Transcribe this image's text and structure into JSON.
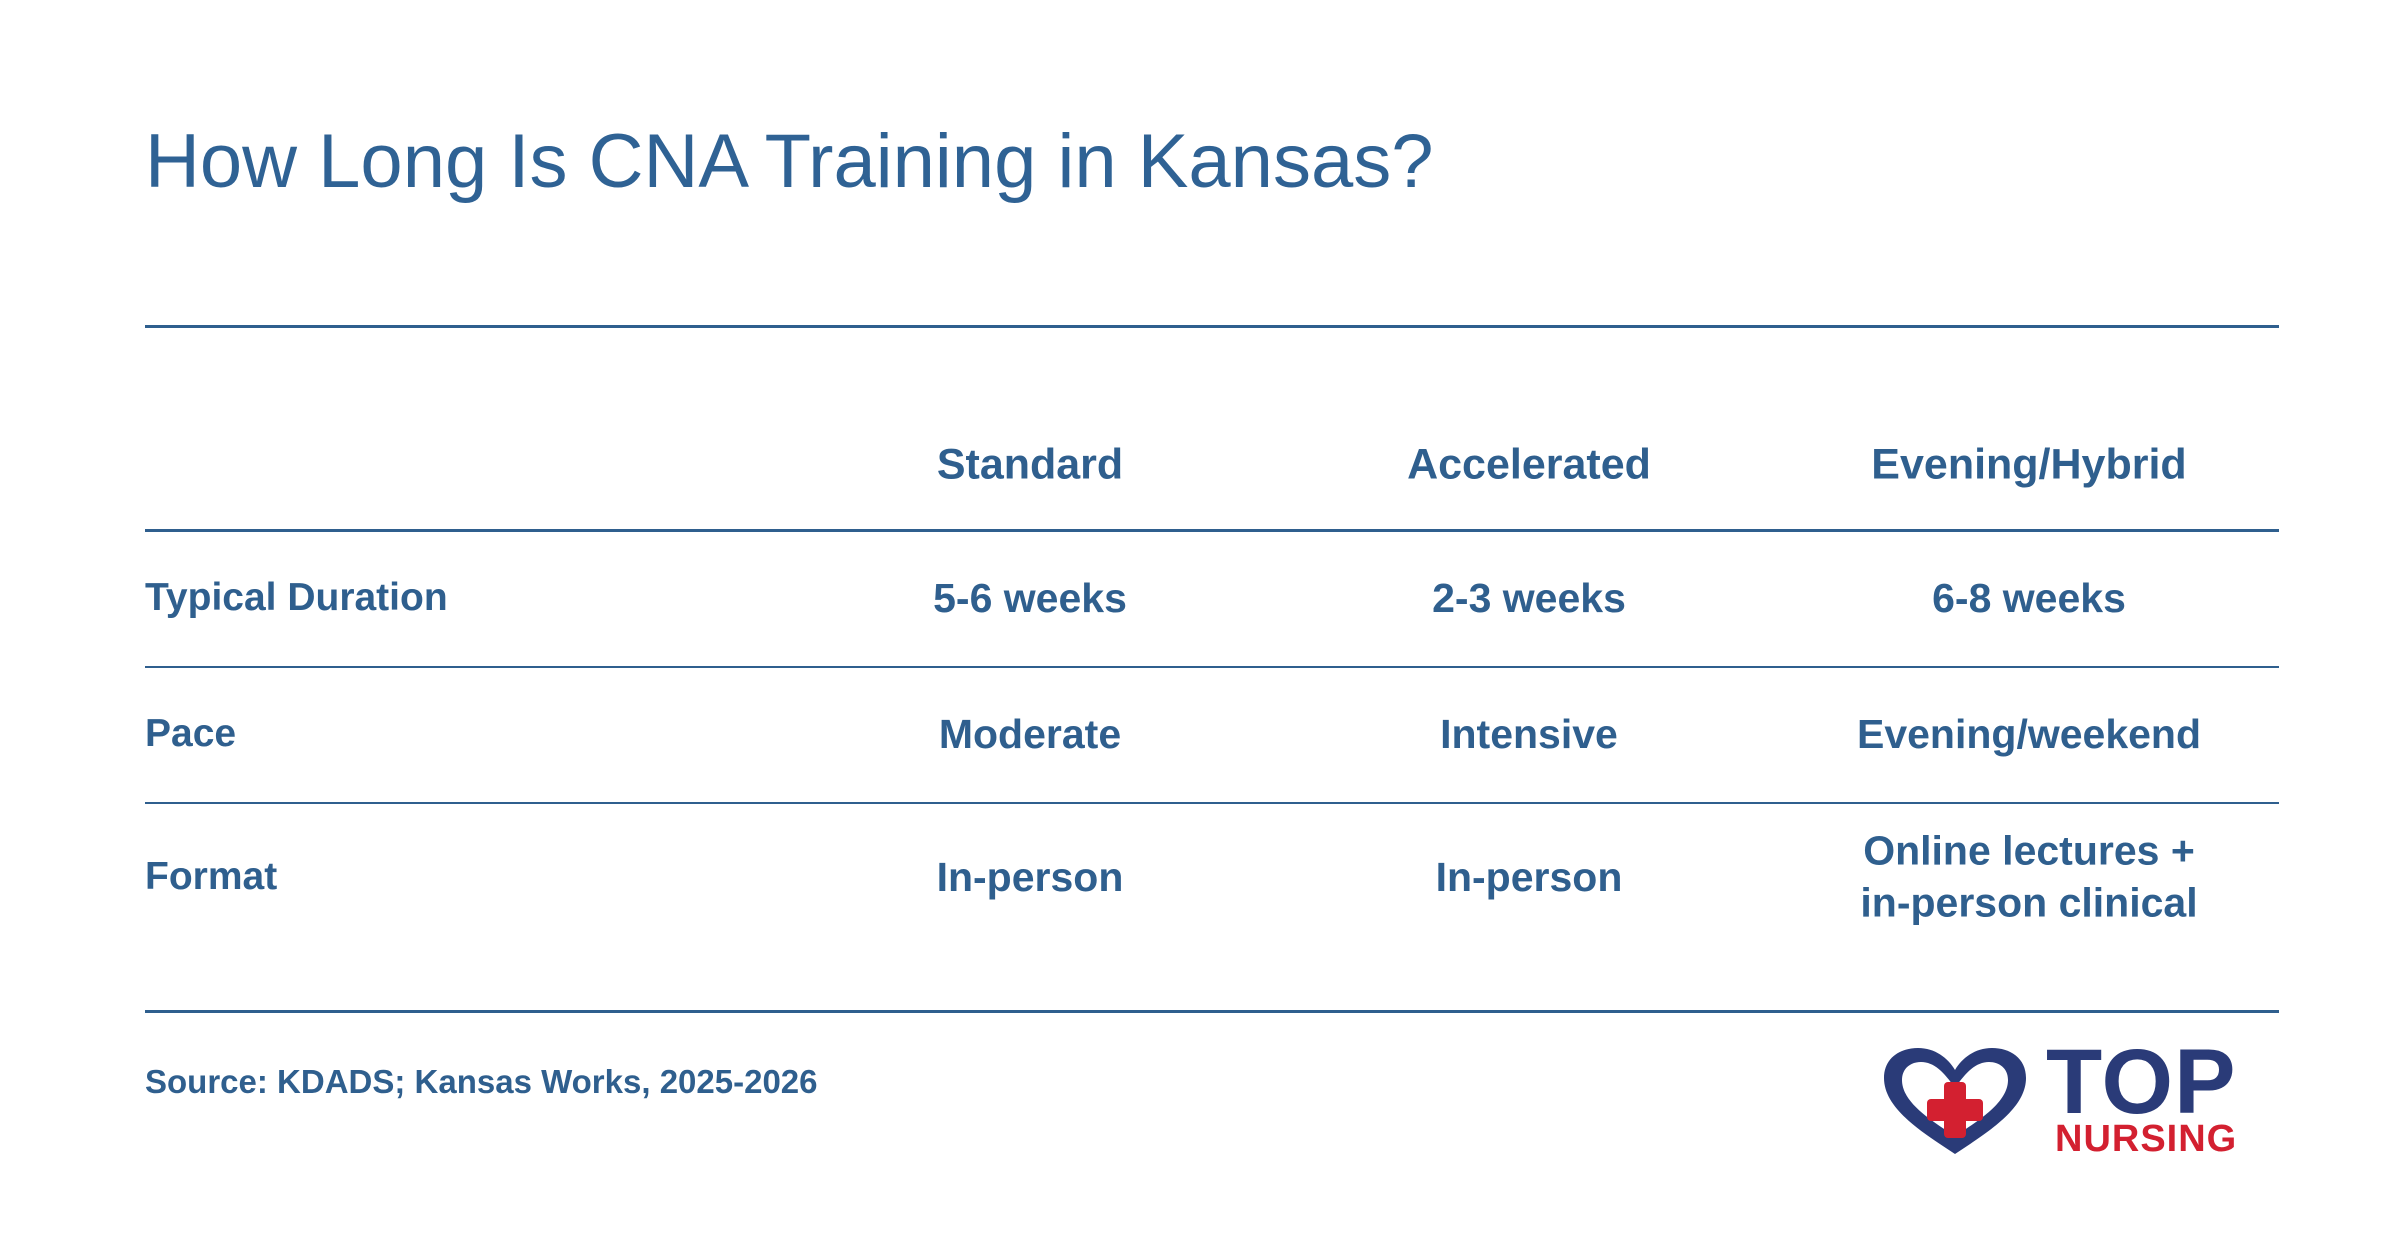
{
  "title": "How Long Is CNA Training in Kansas?",
  "table": {
    "columns": [
      "Standard",
      "Accelerated",
      "Evening/Hybrid"
    ],
    "rows": [
      {
        "label": "Typical Duration",
        "cells": [
          "5-6 weeks",
          "2-3 weeks",
          "6-8 weeks"
        ]
      },
      {
        "label": "Pace",
        "cells": [
          "Moderate",
          "Intensive",
          "Evening/weekend"
        ]
      },
      {
        "label": "Format",
        "cells": [
          "In-person",
          "In-person",
          "Online lectures + in-person clinical"
        ]
      }
    ]
  },
  "source": "Source: KDADS; Kansas Works, 2025-2026",
  "logo": {
    "top": "TOP",
    "bottom": "NURSING"
  }
}
